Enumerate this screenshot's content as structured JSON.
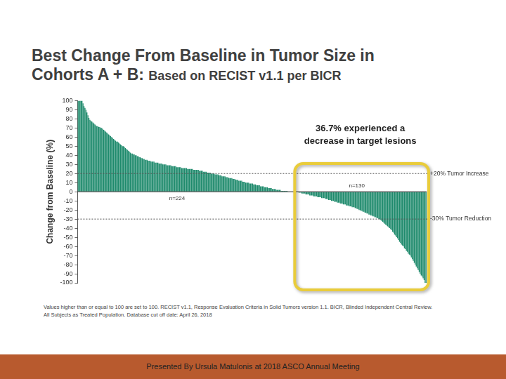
{
  "chart_data": {
    "type": "bar",
    "title": "Best Change From Baseline in Tumor Size in\nCohorts A + B:",
    "subtitle": "Based on RECIST v1.1 per BICR",
    "y_label": "Change from Baseline (%)",
    "values": [
      100,
      100,
      100,
      100,
      100,
      97,
      94,
      92,
      90,
      87,
      84,
      81,
      79,
      78,
      77,
      76,
      75,
      74,
      73,
      72,
      72,
      71,
      71,
      70,
      70,
      69,
      68,
      67,
      66,
      65,
      64,
      63,
      62,
      61,
      60,
      59,
      58,
      57,
      56,
      55,
      55,
      54,
      53,
      52,
      51,
      50,
      50,
      49,
      48,
      47,
      46,
      45,
      44,
      43,
      42,
      42,
      41,
      41,
      40,
      40,
      39,
      39,
      38,
      38,
      37,
      37,
      36,
      36,
      35,
      35,
      35,
      34,
      34,
      34,
      33,
      33,
      33,
      33,
      32,
      32,
      32,
      32,
      31,
      31,
      31,
      31,
      30,
      30,
      30,
      30,
      29,
      29,
      29,
      29,
      29,
      28,
      28,
      28,
      28,
      28,
      27,
      27,
      27,
      27,
      27,
      26,
      26,
      26,
      26,
      26,
      26,
      25,
      25,
      25,
      25,
      25,
      25,
      24,
      24,
      24,
      24,
      24,
      24,
      23,
      23,
      23,
      23,
      22,
      22,
      22,
      22,
      21,
      21,
      21,
      21,
      20,
      20,
      20,
      20,
      19,
      19,
      19,
      19,
      18,
      18,
      18,
      17,
      17,
      17,
      17,
      16,
      16,
      16,
      15,
      15,
      15,
      15,
      14,
      14,
      14,
      13,
      13,
      13,
      12,
      12,
      12,
      12,
      11,
      11,
      11,
      10,
      10,
      10,
      10,
      9,
      9,
      9,
      9,
      8,
      8,
      8,
      7,
      7,
      7,
      7,
      6,
      6,
      6,
      6,
      5,
      5,
      5,
      5,
      4,
      4,
      4,
      4,
      3,
      3,
      3,
      3,
      2,
      2,
      2,
      2,
      2,
      1,
      1,
      1,
      1,
      1,
      1,
      1,
      0,
      0,
      0,
      0,
      0,
      0,
      0,
      0,
      0,
      0,
      0,
      -1,
      -1,
      -1,
      -2,
      -2,
      -2,
      -2,
      -3,
      -3,
      -3,
      -3,
      -4,
      -4,
      -4,
      -4,
      -5,
      -5,
      -5,
      -5,
      -6,
      -6,
      -6,
      -6,
      -7,
      -7,
      -7,
      -7,
      -8,
      -8,
      -8,
      -9,
      -9,
      -9,
      -10,
      -10,
      -10,
      -11,
      -11,
      -11,
      -12,
      -12,
      -12,
      -13,
      -13,
      -13,
      -14,
      -14,
      -14,
      -15,
      -15,
      -15,
      -16,
      -16,
      -16,
      -17,
      -17,
      -17,
      -18,
      -18,
      -19,
      -19,
      -20,
      -20,
      -21,
      -21,
      -22,
      -22,
      -23,
      -23,
      -24,
      -24,
      -25,
      -25,
      -26,
      -26,
      -27,
      -27,
      -28,
      -28,
      -29,
      -29,
      -30,
      -30,
      -31,
      -32,
      -33,
      -34,
      -35,
      -36,
      -37,
      -38,
      -39,
      -40,
      -41,
      -42,
      -44,
      -45,
      -47,
      -48,
      -50,
      -51,
      -53,
      -55,
      -56,
      -58,
      -59,
      -60,
      -62,
      -63,
      -65,
      -66,
      -68,
      -69,
      -70,
      -72,
      -74,
      -76,
      -78,
      -80,
      -82,
      -84,
      -86,
      -88,
      -90,
      -92,
      -93,
      -95,
      -97,
      -100,
      -100
    ],
    "color": "#1e8a6c",
    "ylim": [
      -100,
      100
    ],
    "yticks": [
      -100,
      -90,
      -80,
      -70,
      -60,
      -50,
      -40,
      -30,
      -20,
      -10,
      0,
      10,
      20,
      30,
      40,
      50,
      60,
      70,
      80,
      90,
      100
    ],
    "grid": false,
    "tick_labels": "y",
    "reference_lines": [
      {
        "value": 20,
        "label": "+20% Tumor Increase"
      },
      {
        "value": -30,
        "label": "-30% Tumor Reduction"
      }
    ],
    "annotations": [
      {
        "text": "36.7% experienced a\ndecrease in target lesions"
      },
      {
        "text": "n=224"
      },
      {
        "text": "n=130"
      }
    ]
  },
  "footnote": [
    "Values higher than or equal to 100 are set to 100. RECIST v1.1, Response Evaluation Criteria in Solid Tumors version 1.1. BICR, Blinded Independent Central Review.",
    "All Subjects as Treated Population. Database cut off date: April 26, 2018"
  ],
  "footer": "Presented By Ursula Matulonis at 2018 ASCO Annual Meeting"
}
